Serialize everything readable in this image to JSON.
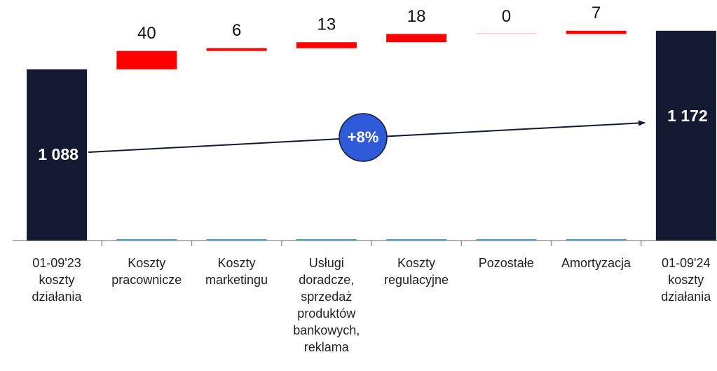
{
  "chart_data": {
    "type": "waterfall",
    "categories": [
      "01-09'23\nkoszty\ndziałania",
      "Koszty\npracownicze",
      "Koszty\nmarketingu",
      "Usługi\ndoradcze,\nsprzedaż\nproduktów\nbankowych,\nreklama",
      "Koszty\nregulacyjne",
      "Pozostałe",
      "Amortyzacja",
      "01-09'24\nkoszty\ndziałania"
    ],
    "values": [
      1088,
      40,
      6,
      13,
      18,
      0,
      7,
      1172
    ],
    "value_labels": [
      "1 088",
      "40",
      "6",
      "13",
      "18",
      "0",
      "7",
      "1 172"
    ],
    "measure": [
      "absolute",
      "relative",
      "relative",
      "relative",
      "relative",
      "relative",
      "relative",
      "total"
    ],
    "total_color": "#151a33",
    "increase_color": "#ff0000",
    "annotation": "+8%",
    "ylim": [
      715,
      1239
    ]
  }
}
